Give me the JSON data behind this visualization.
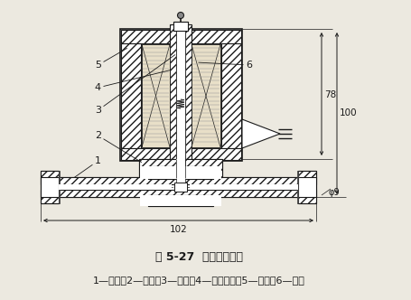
{
  "title": "图 5-27  直动式电磁阀",
  "caption": "1—阀体；2—阀座；3—铁芯；4—隔磁套管；5—线圈；6—弹簧",
  "bg_color": "#ece9e0",
  "line_color": "#1a1a1a",
  "dim_78": "78",
  "dim_100": "100",
  "dim_102": "102",
  "dim_9": "φ9",
  "fig_width": 4.55,
  "fig_height": 3.32
}
